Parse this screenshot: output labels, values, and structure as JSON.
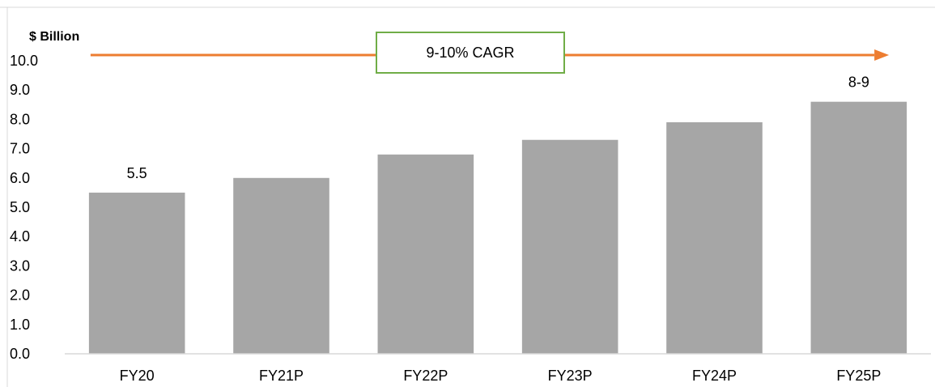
{
  "chart_data": {
    "type": "bar",
    "ylabel": "$ Billion",
    "ylim": [
      0,
      10
    ],
    "yticks": [
      "0.0",
      "1.0",
      "2.0",
      "3.0",
      "4.0",
      "5.0",
      "6.0",
      "7.0",
      "8.0",
      "9.0",
      "10.0"
    ],
    "categories": [
      "FY20",
      "FY21P",
      "FY22P",
      "FY23P",
      "FY24P",
      "FY25P"
    ],
    "values": [
      5.5,
      6.0,
      6.8,
      7.3,
      7.9,
      8.6
    ],
    "data_labels": [
      {
        "category": "FY20",
        "text": "5.5"
      },
      {
        "category": "FY25P",
        "text": "8-9"
      }
    ],
    "annotation": {
      "text": "9-10% CAGR",
      "type": "arrow"
    },
    "grid": false,
    "colors": {
      "bar": "#a6a6a6",
      "arrow": "#ed7d31",
      "box_border": "#70ad47",
      "axis": "#d9d9d9"
    }
  }
}
